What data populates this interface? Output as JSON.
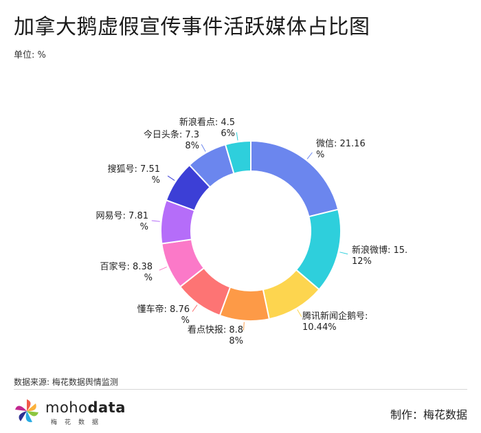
{
  "page": {
    "title": "加拿大鹅虚假宣传事件活跃媒体占比图",
    "unit": "单位: %",
    "source": "数据来源: 梅花数据舆情监测",
    "maker": "制作：梅花数据",
    "logo": {
      "word_light": "moho",
      "word_bold": "data",
      "subtitle": "梅花数据"
    }
  },
  "chart_data": {
    "type": "pie",
    "donut": true,
    "unit": "%",
    "slices": [
      {
        "label": "微信",
        "value": 21.16,
        "text": [
          "微信: 21.16",
          "%"
        ],
        "color": "#6b86ee"
      },
      {
        "label": "新浪微博",
        "value": 15.12,
        "text": [
          "新浪微博: 15.",
          "12%"
        ],
        "color": "#2ecfdc"
      },
      {
        "label": "腾讯新闻企鹅号",
        "value": 10.44,
        "text": [
          "腾讯新闻企鹅号:",
          "10.44%"
        ],
        "color": "#fdd54f"
      },
      {
        "label": "看点快报",
        "value": 8.88,
        "text": [
          "看点快报: 8.8",
          "8%"
        ],
        "color": "#fd9a47"
      },
      {
        "label": "懂车帝",
        "value": 8.76,
        "text": [
          "懂车帝: 8.76",
          "%"
        ],
        "color": "#fd7474"
      },
      {
        "label": "百家号",
        "value": 8.38,
        "text": [
          "百家号: 8.38",
          "%"
        ],
        "color": "#fb79c8"
      },
      {
        "label": "网易号",
        "value": 7.81,
        "text": [
          "网易号: 7.81",
          "%"
        ],
        "color": "#b56df9"
      },
      {
        "label": "搜狐号",
        "value": 7.51,
        "text": [
          "搜狐号: 7.51",
          "%"
        ],
        "color": "#3c3fd6"
      },
      {
        "label": "今日头条",
        "value": 7.38,
        "text": [
          "今日头条: 7.3",
          "8%"
        ],
        "color": "#6b86ee"
      },
      {
        "label": "新浪看点",
        "value": 4.56,
        "text": [
          "新浪看点: 4.5",
          "6%"
        ],
        "color": "#2ecfdc"
      }
    ]
  }
}
